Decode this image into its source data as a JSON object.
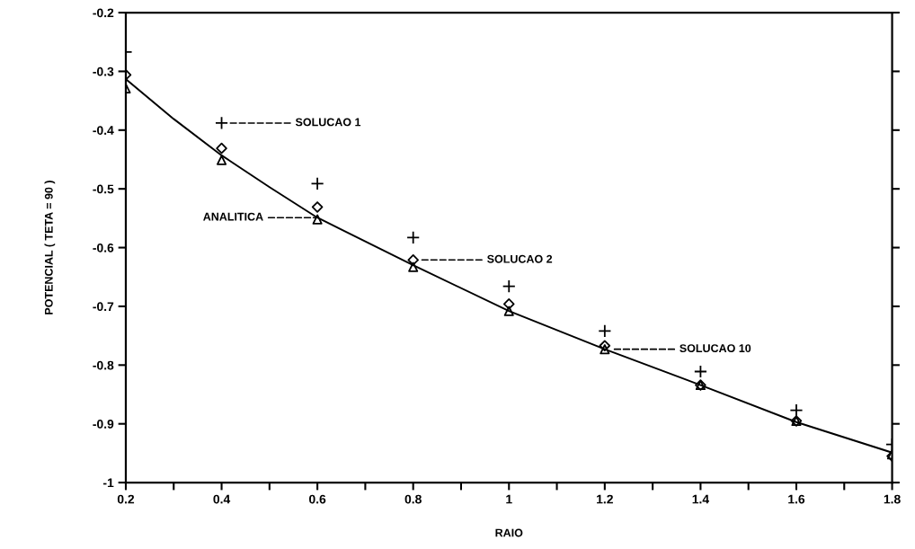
{
  "chart_data": {
    "type": "scatter",
    "xlabel": "RAIO",
    "ylabel": "POTENCIAL ( TETA = 90 )",
    "x": [
      0.2,
      0.4,
      0.6,
      0.8,
      1.0,
      1.2,
      1.4,
      1.6,
      1.8
    ],
    "series": [
      {
        "name": "SOLUCAO 1",
        "color": "#000000",
        "marker": "cross",
        "values": [
          -0.267,
          -0.388,
          -0.491,
          -0.583,
          -0.666,
          -0.742,
          -0.811,
          -0.877,
          -0.935
        ]
      },
      {
        "name": "SOLUCAO 2",
        "color": "#000000",
        "marker": "diamond",
        "values": [
          -0.306,
          -0.431,
          -0.531,
          -0.621,
          -0.696,
          -0.767,
          -0.834,
          -0.895,
          -0.955
        ]
      },
      {
        "name": "SOLUCAO 10",
        "color": "#000000",
        "marker": "triangle",
        "values": [
          -0.329,
          -0.451,
          -0.552,
          -0.633,
          -0.708,
          -0.773,
          -0.834,
          -0.895,
          -0.952
        ]
      },
      {
        "type": "line",
        "color": "#000000",
        "marker": "none",
        "line_style": "solid",
        "x": [
          0.2,
          0.3,
          0.4,
          0.5,
          0.6,
          0.8,
          1.0,
          1.2,
          1.4,
          1.6,
          1.8
        ],
        "values": [
          -0.313,
          -0.381,
          -0.443,
          -0.497,
          -0.549,
          -0.63,
          -0.708,
          -0.773,
          -0.834,
          -0.897,
          -0.949
        ]
      }
    ],
    "xlim": [
      0.2,
      1.8
    ],
    "xticks": [
      0.2,
      {
        "value": 0.3,
        "label": null
      },
      0.4,
      {
        "value": 0.5,
        "label": null
      },
      0.6,
      {
        "value": 0.7,
        "label": null
      },
      0.8,
      {
        "value": 0.9,
        "label": null
      },
      1,
      {
        "value": 1.1,
        "label": null
      },
      1.2,
      {
        "value": 1.3,
        "label": null
      },
      1.4,
      {
        "value": 1.5,
        "label": null
      },
      1.6,
      {
        "value": 1.7,
        "label": null
      },
      1.8
    ],
    "ylim": [
      -1,
      -0.2
    ],
    "yticks": [
      -1,
      -0.9,
      -0.8,
      -0.7,
      -0.6,
      -0.5,
      -0.4,
      -0.3,
      -0.2
    ],
    "annotations": [
      "ANALITICA"
    ],
    "grid": false,
    "legend": false
  }
}
